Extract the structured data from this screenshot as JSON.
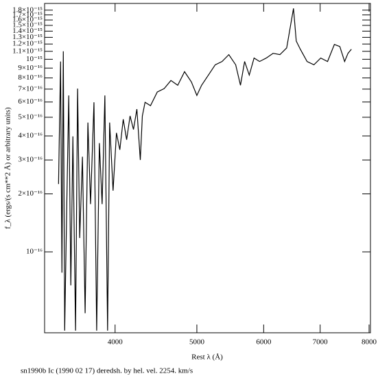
{
  "chart_data": {
    "type": "line",
    "xlabel": "Rest λ (Å)",
    "ylabel": "f_λ (ergs/(s cm**2 Å) or arbitrary units)",
    "caption": "sn1990b Ic (1990 02 17) deredsh. by hel. vel.  2254. km/s",
    "xscale": "log",
    "yscale": "log",
    "color": "#000000",
    "xlim": [
      3300,
      8030
    ],
    "ylim": [
      3.8e-17,
      1.95e-15
    ],
    "xticks": [
      4000,
      5000,
      6000,
      7000,
      8000
    ],
    "yticks": [
      {
        "value": 1e-16,
        "label": "10⁻¹⁶"
      },
      {
        "value": 2e-16,
        "label": "2×10⁻¹⁶"
      },
      {
        "value": 3e-16,
        "label": "3×10⁻¹⁶"
      },
      {
        "value": 4e-16,
        "label": "4×10⁻¹⁶"
      },
      {
        "value": 5e-16,
        "label": "5×10⁻¹⁶"
      },
      {
        "value": 6e-16,
        "label": "6×10⁻¹⁶"
      },
      {
        "value": 7e-16,
        "label": "7×10⁻¹⁶"
      },
      {
        "value": 8e-16,
        "label": "8×10⁻¹⁶"
      },
      {
        "value": 9e-16,
        "label": "9×10⁻¹⁶"
      },
      {
        "value": 1e-15,
        "label": "10⁻¹⁵"
      },
      {
        "value": 1.1e-15,
        "label": "1.1×10⁻¹⁵"
      },
      {
        "value": 1.2e-15,
        "label": "1.2×10⁻¹⁵"
      },
      {
        "value": 1.3e-15,
        "label": "1.3×10⁻¹⁵"
      },
      {
        "value": 1.4e-15,
        "label": "1.4×10⁻¹⁵"
      },
      {
        "value": 1.5e-15,
        "label": "1.5×10⁻¹⁵"
      },
      {
        "value": 1.6e-15,
        "label": "1.6×10⁻¹⁵"
      },
      {
        "value": 1.7e-15,
        "label": "1.7×10⁻¹⁵"
      },
      {
        "value": 1.8e-15,
        "label": "1.8×10⁻¹⁵"
      }
    ],
    "x": [
      3428,
      3447,
      3460,
      3473,
      3486,
      3506,
      3525,
      3545,
      3565,
      3591,
      3611,
      3632,
      3659,
      3686,
      3714,
      3741,
      3776,
      3804,
      3832,
      3861,
      3890,
      3919,
      3941,
      3978,
      4015,
      4052,
      4090,
      4128,
      4167,
      4206,
      4245,
      4285,
      4309,
      4341,
      4406,
      4488,
      4573,
      4658,
      4746,
      4835,
      4926,
      5000,
      5065,
      5160,
      5257,
      5356,
      5456,
      5559,
      5632,
      5696,
      5769,
      5845,
      5933,
      6043,
      6156,
      6272,
      6389,
      6461,
      6509,
      6558,
      6631,
      6755,
      6882,
      7011,
      7143,
      7277,
      7386,
      7483,
      7553,
      7623
    ],
    "values": [
      2.25e-16,
      9.74e-16,
      7.8e-17,
      1.1e-15,
      3.9e-17,
      1.77e-16,
      6.49e-16,
      6.7e-17,
      3.98e-16,
      3.9e-17,
      7.04e-16,
      1.18e-16,
      3.12e-16,
      4.8e-17,
      4.69e-16,
      1.77e-16,
      5.98e-16,
      3.9e-17,
      3.67e-16,
      1.77e-16,
      6.49e-16,
      3.9e-17,
      4.69e-16,
      2.08e-16,
      4.15e-16,
      3.39e-16,
      4.88e-16,
      3.82e-16,
      5.08e-16,
      4.32e-16,
      5.51e-16,
      3e-16,
      5.08e-16,
      5.98e-16,
      5.74e-16,
      6.76e-16,
      7.04e-16,
      7.76e-16,
      7.33e-16,
      8.62e-16,
      7.63e-16,
      6.49e-16,
      7.33e-16,
      8.28e-16,
      9.36e-16,
      9.74e-16,
      1.057e-15,
      9.36e-16,
      7.33e-16,
      9.74e-16,
      8.28e-16,
      1.015e-15,
      9.74e-16,
      1.015e-15,
      1.074e-15,
      1.057e-15,
      1.146e-15,
      1.524e-15,
      1.837e-15,
      1.243e-15,
      1.128e-15,
      9.74e-16,
      9.36e-16,
      1.015e-15,
      9.74e-16,
      1.194e-15,
      1.165e-15,
      9.74e-16,
      1.074e-15,
      1.128e-15
    ]
  }
}
